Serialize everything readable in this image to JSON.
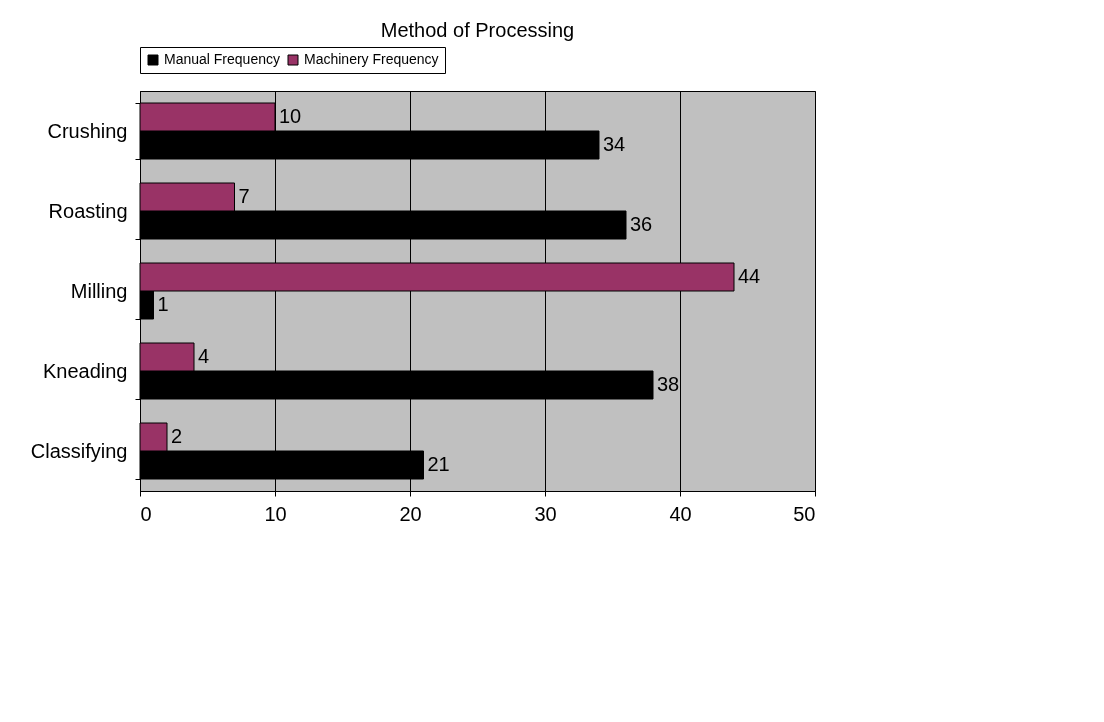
{
  "chart_data": {
    "type": "bar",
    "orientation": "horizontal",
    "title": "Method of Processing",
    "categories": [
      "Crushing",
      "Roasting",
      "Milling",
      "Kneading",
      "Classifying"
    ],
    "series": [
      {
        "name": "Manual Frequency",
        "color": "#000000",
        "values": [
          34,
          36,
          1,
          38,
          21
        ]
      },
      {
        "name": "Machinery Frequency",
        "color": "#993366",
        "values": [
          10,
          7,
          44,
          4,
          2
        ]
      }
    ],
    "xlim": [
      0,
      50
    ],
    "xticks": [
      0,
      10,
      20,
      30,
      40,
      50
    ],
    "grid": "x",
    "legend": "top",
    "data_labels": true
  }
}
